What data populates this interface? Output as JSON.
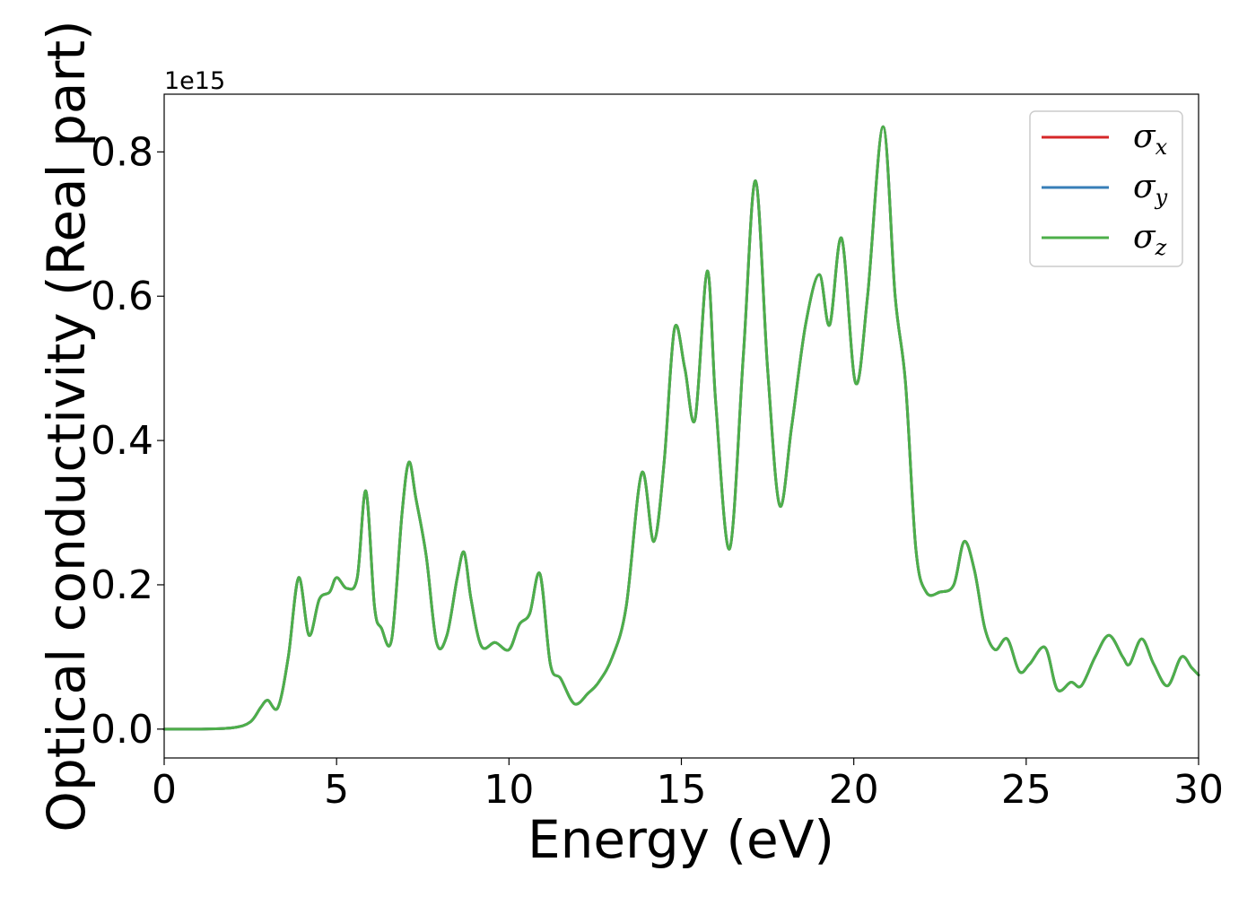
{
  "chart_data": {
    "type": "line",
    "xlabel": "Energy (eV)",
    "ylabel": "Optical conductivity (Real part)",
    "y_offset_label": "1e15",
    "y_scale_factor": 1000000000000000.0,
    "xlim": [
      0,
      30
    ],
    "ylim": [
      -0.04,
      0.88
    ],
    "xticks": [
      0,
      5,
      10,
      15,
      20,
      25,
      30
    ],
    "xtick_labels": [
      "0",
      "5",
      "10",
      "15",
      "20",
      "25",
      "30"
    ],
    "yticks": [
      0.0,
      0.2,
      0.4,
      0.6,
      0.8
    ],
    "ytick_labels": [
      "0.0",
      "0.2",
      "0.4",
      "0.6",
      "0.8"
    ],
    "grid": false,
    "legend_position": "top-right",
    "x": [
      0,
      1,
      2,
      2.5,
      2.8,
      3.0,
      3.3,
      3.6,
      3.9,
      4.2,
      4.5,
      4.8,
      5.0,
      5.3,
      5.6,
      5.85,
      6.1,
      6.3,
      6.6,
      6.9,
      7.1,
      7.3,
      7.6,
      7.9,
      8.2,
      8.5,
      8.7,
      8.9,
      9.2,
      9.6,
      10.0,
      10.3,
      10.6,
      10.9,
      11.2,
      11.5,
      11.9,
      12.3,
      12.6,
      13.0,
      13.4,
      13.85,
      14.2,
      14.5,
      14.8,
      15.1,
      15.4,
      15.75,
      16.0,
      16.4,
      16.8,
      17.15,
      17.5,
      17.85,
      18.2,
      18.6,
      19.0,
      19.3,
      19.65,
      20.05,
      20.4,
      20.85,
      21.2,
      21.5,
      21.8,
      22.1,
      22.5,
      22.9,
      23.2,
      23.5,
      23.8,
      24.1,
      24.45,
      24.8,
      25.1,
      25.55,
      25.9,
      26.3,
      26.6,
      27.0,
      27.4,
      27.8,
      28.0,
      28.35,
      28.7,
      29.1,
      29.5,
      29.8,
      30.0
    ],
    "series": [
      {
        "name": "σx",
        "symbol": "σ",
        "subscript": "x",
        "color": "#d62728",
        "values": [
          0.0,
          0.0,
          0.002,
          0.01,
          0.03,
          0.04,
          0.03,
          0.1,
          0.21,
          0.13,
          0.18,
          0.19,
          0.21,
          0.195,
          0.21,
          0.33,
          0.17,
          0.14,
          0.125,
          0.3,
          0.37,
          0.32,
          0.24,
          0.12,
          0.13,
          0.21,
          0.245,
          0.18,
          0.115,
          0.12,
          0.11,
          0.145,
          0.16,
          0.215,
          0.09,
          0.07,
          0.035,
          0.05,
          0.065,
          0.1,
          0.17,
          0.355,
          0.26,
          0.37,
          0.555,
          0.5,
          0.43,
          0.635,
          0.45,
          0.25,
          0.52,
          0.76,
          0.5,
          0.31,
          0.42,
          0.56,
          0.63,
          0.56,
          0.68,
          0.48,
          0.6,
          0.835,
          0.6,
          0.48,
          0.25,
          0.19,
          0.19,
          0.2,
          0.26,
          0.22,
          0.14,
          0.11,
          0.125,
          0.08,
          0.09,
          0.113,
          0.055,
          0.065,
          0.06,
          0.1,
          0.13,
          0.1,
          0.09,
          0.125,
          0.09,
          0.06,
          0.1,
          0.085,
          0.075
        ]
      },
      {
        "name": "σy",
        "symbol": "σ",
        "subscript": "y",
        "color": "#377eb8",
        "values": [
          0.0,
          0.0,
          0.002,
          0.01,
          0.03,
          0.04,
          0.03,
          0.1,
          0.21,
          0.13,
          0.18,
          0.19,
          0.21,
          0.195,
          0.21,
          0.33,
          0.17,
          0.14,
          0.125,
          0.3,
          0.37,
          0.32,
          0.24,
          0.12,
          0.13,
          0.21,
          0.245,
          0.18,
          0.115,
          0.12,
          0.11,
          0.145,
          0.16,
          0.215,
          0.09,
          0.07,
          0.035,
          0.05,
          0.065,
          0.1,
          0.17,
          0.355,
          0.26,
          0.37,
          0.555,
          0.5,
          0.43,
          0.635,
          0.45,
          0.25,
          0.52,
          0.76,
          0.5,
          0.31,
          0.42,
          0.56,
          0.63,
          0.56,
          0.68,
          0.48,
          0.6,
          0.835,
          0.6,
          0.48,
          0.25,
          0.19,
          0.19,
          0.2,
          0.26,
          0.22,
          0.14,
          0.11,
          0.125,
          0.08,
          0.09,
          0.113,
          0.055,
          0.065,
          0.06,
          0.1,
          0.13,
          0.1,
          0.09,
          0.125,
          0.09,
          0.06,
          0.1,
          0.085,
          0.075
        ]
      },
      {
        "name": "σz",
        "symbol": "σ",
        "subscript": "z",
        "color": "#4daf4a",
        "values": [
          0.0,
          0.0,
          0.002,
          0.01,
          0.03,
          0.04,
          0.03,
          0.1,
          0.21,
          0.13,
          0.18,
          0.19,
          0.21,
          0.195,
          0.21,
          0.33,
          0.17,
          0.14,
          0.125,
          0.3,
          0.37,
          0.32,
          0.24,
          0.12,
          0.13,
          0.21,
          0.245,
          0.18,
          0.115,
          0.12,
          0.11,
          0.145,
          0.16,
          0.215,
          0.09,
          0.07,
          0.035,
          0.05,
          0.065,
          0.1,
          0.17,
          0.355,
          0.26,
          0.37,
          0.555,
          0.5,
          0.43,
          0.635,
          0.45,
          0.25,
          0.52,
          0.76,
          0.5,
          0.31,
          0.42,
          0.56,
          0.63,
          0.56,
          0.68,
          0.48,
          0.6,
          0.835,
          0.6,
          0.48,
          0.25,
          0.19,
          0.19,
          0.2,
          0.26,
          0.22,
          0.14,
          0.11,
          0.125,
          0.08,
          0.09,
          0.113,
          0.055,
          0.065,
          0.06,
          0.1,
          0.13,
          0.1,
          0.09,
          0.125,
          0.09,
          0.06,
          0.1,
          0.085,
          0.075
        ]
      }
    ]
  }
}
